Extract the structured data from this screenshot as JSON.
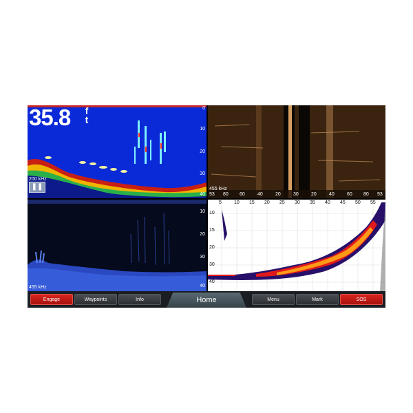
{
  "traditional": {
    "depth_value": "35.8",
    "depth_unit_top": "f",
    "depth_unit_bottom": "t",
    "scale": [
      "0",
      "10",
      "20",
      "30",
      "40"
    ],
    "frequency": "200 kHz",
    "pause_icon": "pause-icon"
  },
  "sidevu": {
    "scale_left": [
      "93",
      "80",
      "60",
      "40",
      "20"
    ],
    "scale_center": "30",
    "scale_right": [
      "20",
      "40",
      "60",
      "80",
      "93"
    ],
    "frequency": "455 kHz"
  },
  "downvu": {
    "scale": [
      "10",
      "20",
      "30",
      "40"
    ],
    "frequency": "455 kHz"
  },
  "frontvu": {
    "top": [
      "5",
      "10",
      "15",
      "20",
      "25",
      "30",
      "35",
      "40",
      "45",
      "50",
      "55"
    ],
    "left": [
      "10",
      "15",
      "20",
      "30",
      "40"
    ]
  },
  "buttons": {
    "engage": "Engage",
    "waypoints": "Waypoints",
    "info": "Info",
    "home": "Home",
    "menu": "Menu",
    "mark": "Mark",
    "sos": "SOS"
  },
  "colors": {
    "alert_red": "#d9231e",
    "sonar_blue": "#0a2ad8"
  }
}
